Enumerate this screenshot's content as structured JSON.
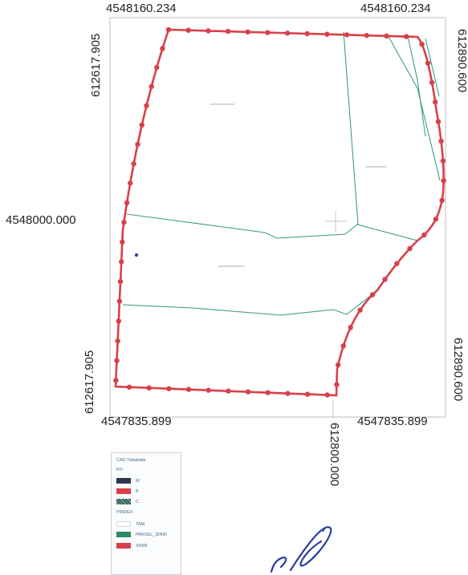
{
  "map": {
    "coords": {
      "top_left": "4548160.234",
      "top_right": "4548160.234",
      "left_top_vertical": "612617.905",
      "right_top_vertical": "612890.600",
      "left_mid": "4548000.000",
      "left_bottom_vertical": "612617.905",
      "right_bottom_vertical": "612890.600",
      "bottom_left": "4547835.899",
      "bottom_right": "4547835.899",
      "bottom_center_vertical": "612800.000"
    },
    "colors": {
      "boundary": "#d8404a",
      "parcel_line": "#3c9a8e",
      "frame": "#bdbdbd"
    }
  },
  "legend": {
    "title": "CAD Tabakalar",
    "group1_title": "KO",
    "group1_items": [
      {
        "label": "M",
        "color": "#2b3550"
      },
      {
        "label": "B",
        "color": "#d8404a"
      },
      {
        "label": "C",
        "color": "#2f5f5a"
      }
    ],
    "group2_title": "PINDEX",
    "group2_items": [
      {
        "label": "TAM",
        "color": "#ffffff"
      },
      {
        "label": "PARSEL_SINIR",
        "color": "#2f8a66"
      },
      {
        "label": "SINIR",
        "color": "#d8404a"
      }
    ]
  }
}
